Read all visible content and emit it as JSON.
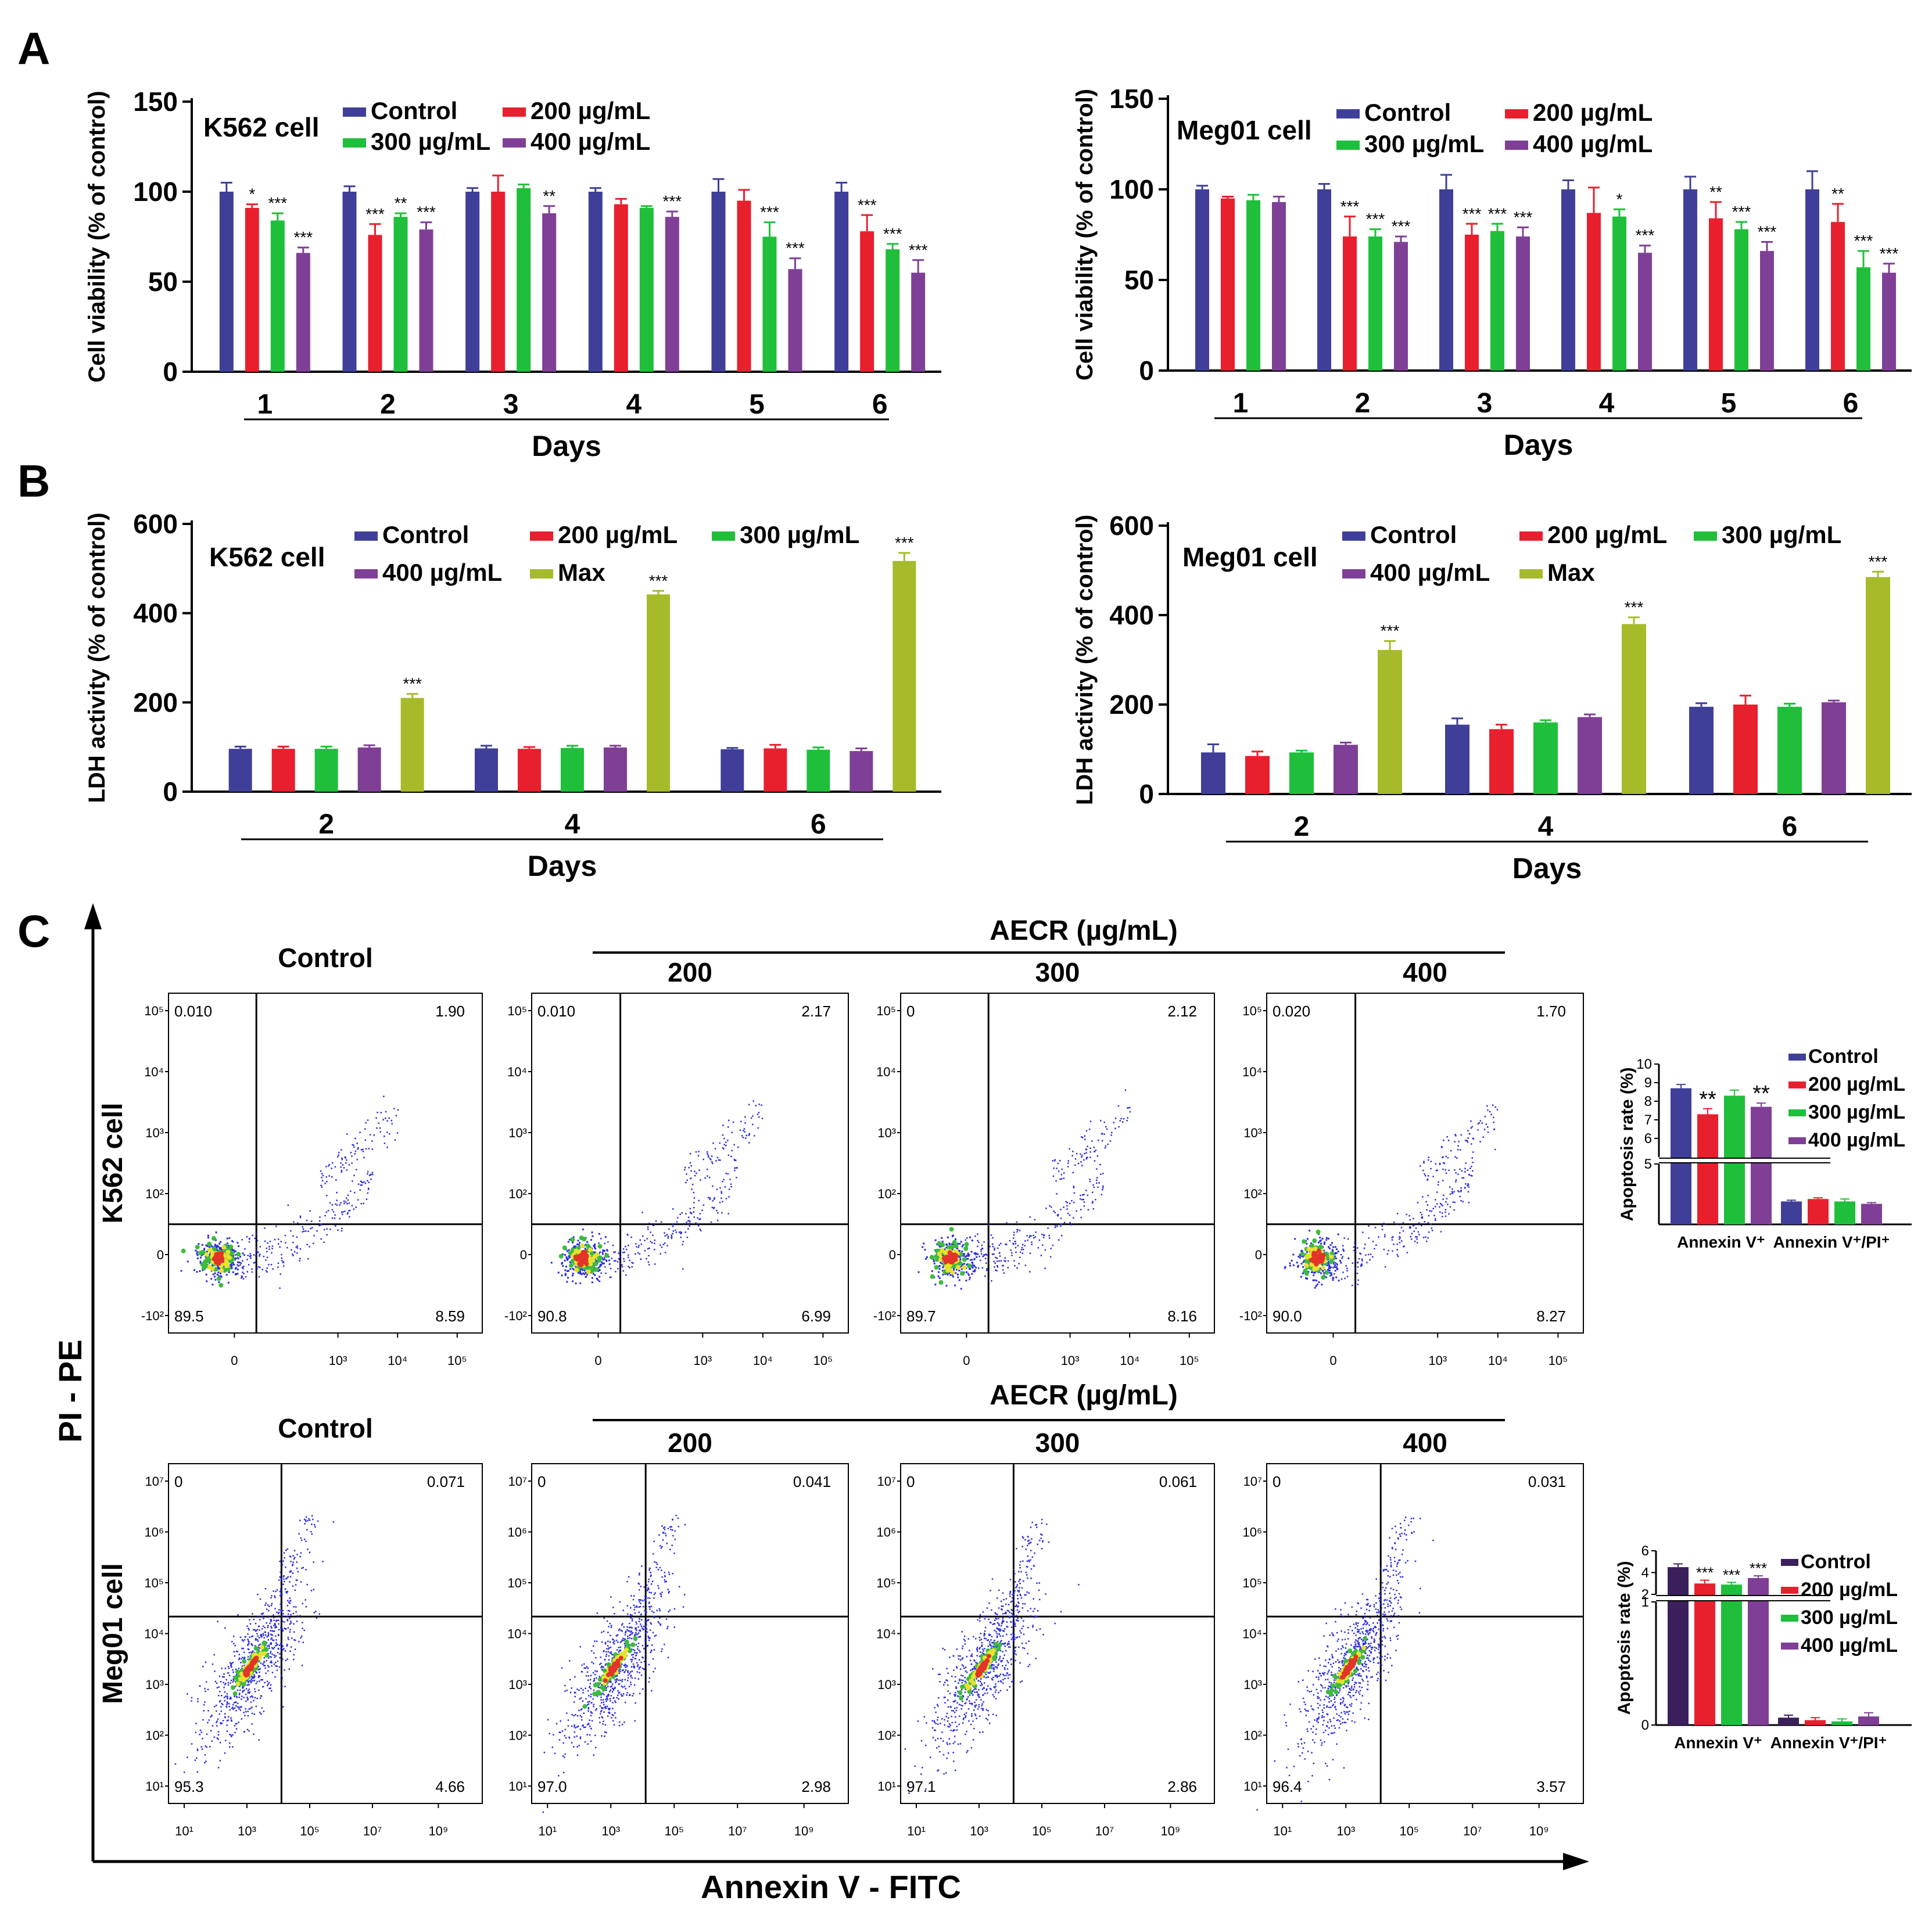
{
  "figure": {
    "panel_labels": [
      "A",
      "B",
      "C"
    ],
    "common": {
      "days_label": "Days",
      "aecr_label": "AECR (µg/mL)",
      "y_axis_label": "PI - PE",
      "x_axis_label": "Annexin V - FITC"
    }
  },
  "colors": {
    "control": "#3f3f99",
    "c200": "#e8202e",
    "c300": "#1fbf3b",
    "c400": "#7f3f96",
    "max": "#a7ba2a",
    "control_dark": "#3a1f5c"
  },
  "chart_data": [
    {
      "id": "A-left",
      "type": "bar",
      "title": "K562 cell",
      "xlabel": "Days",
      "ylabel": "Cell viability (% of control)",
      "ylim": [
        0,
        150
      ],
      "yticks": [
        0,
        50,
        100,
        150
      ],
      "legend_position": "top",
      "categories": [
        "1",
        "2",
        "3",
        "4",
        "5",
        "6"
      ],
      "series": [
        {
          "name": "Control",
          "color_key": "control",
          "values": [
            100,
            100,
            100,
            100,
            100,
            100
          ],
          "errors": [
            5,
            3,
            2,
            2,
            7,
            5
          ],
          "sig": [
            "",
            "",
            "",
            "",
            "",
            ""
          ]
        },
        {
          "name": "200 µg/mL",
          "color_key": "c200",
          "values": [
            91,
            76,
            100,
            93,
            95,
            78
          ],
          "errors": [
            2,
            6,
            9,
            3,
            6,
            9
          ],
          "sig": [
            "*",
            "***",
            "",
            "",
            "",
            "***"
          ]
        },
        {
          "name": "300 µg/mL",
          "color_key": "c300",
          "values": [
            84,
            86,
            102,
            91,
            75,
            68
          ],
          "errors": [
            4,
            2,
            2,
            1,
            8,
            3
          ],
          "sig": [
            "***",
            "**",
            "",
            "",
            "***",
            "***"
          ]
        },
        {
          "name": "400 µg/mL",
          "color_key": "c400",
          "values": [
            66,
            79,
            88,
            86,
            57,
            55
          ],
          "errors": [
            3,
            4,
            4,
            3,
            6,
            7
          ],
          "sig": [
            "***",
            "***",
            "**",
            "***",
            "***",
            "***"
          ]
        }
      ]
    },
    {
      "id": "A-right",
      "type": "bar",
      "title": "Meg01 cell",
      "xlabel": "Days",
      "ylabel": "Cell viability (% of control)",
      "ylim": [
        0,
        150
      ],
      "yticks": [
        0,
        50,
        100,
        150
      ],
      "legend_position": "top",
      "categories": [
        "1",
        "2",
        "3",
        "4",
        "5",
        "6"
      ],
      "series": [
        {
          "name": "Control",
          "color_key": "control",
          "values": [
            100,
            100,
            100,
            100,
            100,
            100
          ],
          "errors": [
            2,
            3,
            8,
            5,
            7,
            10
          ],
          "sig": [
            "",
            "",
            "",
            "",
            "",
            ""
          ]
        },
        {
          "name": "200 µg/mL",
          "color_key": "c200",
          "values": [
            95,
            74,
            75,
            87,
            84,
            82
          ],
          "errors": [
            1,
            11,
            6,
            14,
            9,
            10
          ],
          "sig": [
            "",
            "***",
            "***",
            "",
            "**",
            "**"
          ]
        },
        {
          "name": "300 µg/mL",
          "color_key": "c300",
          "values": [
            94,
            74,
            77,
            85,
            78,
            57
          ],
          "errors": [
            3,
            4,
            4,
            4,
            4,
            9
          ],
          "sig": [
            "",
            "***",
            "***",
            "*",
            "***",
            "***"
          ]
        },
        {
          "name": "400 µg/mL",
          "color_key": "c400",
          "values": [
            93,
            71,
            74,
            65,
            66,
            54
          ],
          "errors": [
            3,
            3,
            5,
            4,
            5,
            5
          ],
          "sig": [
            "",
            "***",
            "***",
            "***",
            "***",
            "***"
          ]
        }
      ]
    },
    {
      "id": "B-left",
      "type": "bar",
      "title": "K562 cell",
      "xlabel": "Days",
      "ylabel": "LDH activity (% of control)",
      "ylim": [
        0,
        600
      ],
      "yticks": [
        0,
        200,
        400,
        600
      ],
      "legend_position": "top",
      "categories": [
        "2",
        "4",
        "6"
      ],
      "series": [
        {
          "name": "Control",
          "color_key": "control",
          "values": [
            96,
            97,
            95
          ],
          "errors": [
            5,
            6,
            3
          ],
          "sig": [
            "",
            "",
            ""
          ]
        },
        {
          "name": "200 µg/mL",
          "color_key": "c200",
          "values": [
            96,
            96,
            97
          ],
          "errors": [
            5,
            4,
            8
          ],
          "sig": [
            "",
            "",
            ""
          ]
        },
        {
          "name": "300 µg/mL",
          "color_key": "c300",
          "values": [
            96,
            98,
            94
          ],
          "errors": [
            5,
            5,
            5
          ],
          "sig": [
            "",
            "",
            ""
          ]
        },
        {
          "name": "400 µg/mL",
          "color_key": "c400",
          "values": [
            99,
            99,
            91
          ],
          "errors": [
            5,
            4,
            6
          ],
          "sig": [
            "",
            "",
            ""
          ]
        },
        {
          "name": "Max",
          "color_key": "max",
          "values": [
            210,
            442,
            517
          ],
          "errors": [
            9,
            8,
            18
          ],
          "sig": [
            "***",
            "***",
            "***"
          ]
        }
      ]
    },
    {
      "id": "B-right",
      "type": "bar",
      "title": "Meg01 cell",
      "xlabel": "Days",
      "ylabel": "LDH activity (% of control)",
      "ylim": [
        0,
        600
      ],
      "yticks": [
        0,
        200,
        400,
        600
      ],
      "legend_position": "top",
      "categories": [
        "2",
        "4",
        "6"
      ],
      "series": [
        {
          "name": "Control",
          "color_key": "control",
          "values": [
            93,
            155,
            195
          ],
          "errors": [
            18,
            14,
            8
          ],
          "sig": [
            "",
            "",
            ""
          ]
        },
        {
          "name": "200 µg/mL",
          "color_key": "c200",
          "values": [
            85,
            145,
            200
          ],
          "errors": [
            10,
            10,
            20
          ],
          "sig": [
            "",
            "",
            ""
          ]
        },
        {
          "name": "300 µg/mL",
          "color_key": "c300",
          "values": [
            93,
            160,
            195
          ],
          "errors": [
            4,
            5,
            7
          ],
          "sig": [
            "",
            "",
            ""
          ]
        },
        {
          "name": "400 µg/mL",
          "color_key": "c400",
          "values": [
            110,
            172,
            205
          ],
          "errors": [
            5,
            6,
            4
          ],
          "sig": [
            "",
            "",
            ""
          ]
        },
        {
          "name": "Max",
          "color_key": "max",
          "values": [
            322,
            380,
            485
          ],
          "errors": [
            20,
            15,
            12
          ],
          "sig": [
            "***",
            "***",
            "***"
          ]
        }
      ]
    },
    {
      "id": "C-top-bar",
      "type": "bar",
      "ylabel": "Apoptosis rate (%)",
      "legend_position": "right",
      "ylim": [
        0,
        10
      ],
      "axis_break": [
        5,
        5
      ],
      "yticks": [
        5,
        6,
        7,
        8,
        9,
        10
      ],
      "categories": [
        "Annexin V⁺",
        "Annexin V⁺/PI⁺"
      ],
      "series": [
        {
          "name": "Control",
          "color_key": "control",
          "values": [
            8.7,
            1.9
          ],
          "errors": [
            0.2,
            0.1
          ],
          "sig": [
            "",
            ""
          ]
        },
        {
          "name": "200 µg/mL",
          "color_key": "c200",
          "values": [
            7.3,
            2.1
          ],
          "errors": [
            0.3,
            0.1
          ],
          "sig": [
            "**",
            ""
          ]
        },
        {
          "name": "300 µg/mL",
          "color_key": "c300",
          "values": [
            8.3,
            1.9
          ],
          "errors": [
            0.3,
            0.2
          ],
          "sig": [
            "",
            ""
          ]
        },
        {
          "name": "400 µg/mL",
          "color_key": "c400",
          "values": [
            7.7,
            1.7
          ],
          "errors": [
            0.2,
            0.1
          ],
          "sig": [
            "**",
            ""
          ]
        }
      ]
    },
    {
      "id": "C-bottom-bar",
      "type": "bar",
      "ylabel": "Apoptosis rate (%)",
      "legend_position": "right",
      "ylim": [
        0,
        6
      ],
      "axis_break": [
        1,
        2
      ],
      "yticks": [
        0,
        1,
        2,
        4,
        6
      ],
      "categories": [
        "Annexin V⁺",
        "Annexin V⁺/PI⁺"
      ],
      "series": [
        {
          "name": "Control",
          "color_key": "control_dark",
          "values": [
            4.5,
            0.06
          ],
          "errors": [
            0.3,
            0.02
          ],
          "sig": [
            "",
            ""
          ]
        },
        {
          "name": "200 µg/mL",
          "color_key": "c200",
          "values": [
            3.0,
            0.04
          ],
          "errors": [
            0.3,
            0.02
          ],
          "sig": [
            "***",
            ""
          ]
        },
        {
          "name": "300 µg/mL",
          "color_key": "c300",
          "values": [
            2.9,
            0.03
          ],
          "errors": [
            0.2,
            0.02
          ],
          "sig": [
            "***",
            ""
          ]
        },
        {
          "name": "400 µg/mL",
          "color_key": "c400",
          "values": [
            3.5,
            0.07
          ],
          "errors": [
            0.2,
            0.03
          ],
          "sig": [
            "***",
            ""
          ]
        }
      ]
    },
    {
      "id": "C-flow",
      "type": "scatter",
      "description_kind": "flow-cytometry quadrant plots",
      "rows": [
        {
          "cell": "K562 cell",
          "xticks": [
            "0",
            "10³",
            "10⁴",
            "10⁵"
          ],
          "yticks": [
            "10⁵",
            "10⁴",
            "10³",
            "10²",
            "0",
            "-10²"
          ],
          "columns": [
            "Control",
            "200",
            "300",
            "400"
          ],
          "quadrants": [
            {
              "ul": "0.010",
              "ur": "1.90",
              "ll": "89.5",
              "lr": "8.59"
            },
            {
              "ul": "0.010",
              "ur": "2.17",
              "ll": "90.8",
              "lr": "6.99"
            },
            {
              "ul": "0",
              "ur": "2.12",
              "ll": "89.7",
              "lr": "8.16"
            },
            {
              "ul": "0.020",
              "ur": "1.70",
              "ll": "90.0",
              "lr": "8.27"
            }
          ]
        },
        {
          "cell": "Meg01 cell",
          "xticks": [
            "10¹",
            "10³",
            "10⁵",
            "10⁷",
            "10⁹"
          ],
          "yticks": [
            "10⁷",
            "10⁶",
            "10⁵",
            "10⁴",
            "10³",
            "10²",
            "10¹"
          ],
          "columns": [
            "Control",
            "200",
            "300",
            "400"
          ],
          "quadrants": [
            {
              "ul": "0",
              "ur": "0.071",
              "ll": "95.3",
              "lr": "4.66"
            },
            {
              "ul": "0",
              "ur": "0.041",
              "ll": "97.0",
              "lr": "2.98"
            },
            {
              "ul": "0",
              "ur": "0.061",
              "ll": "97.1",
              "lr": "2.86"
            },
            {
              "ul": "0",
              "ur": "0.031",
              "ll": "96.4",
              "lr": "3.57"
            }
          ]
        }
      ]
    }
  ]
}
